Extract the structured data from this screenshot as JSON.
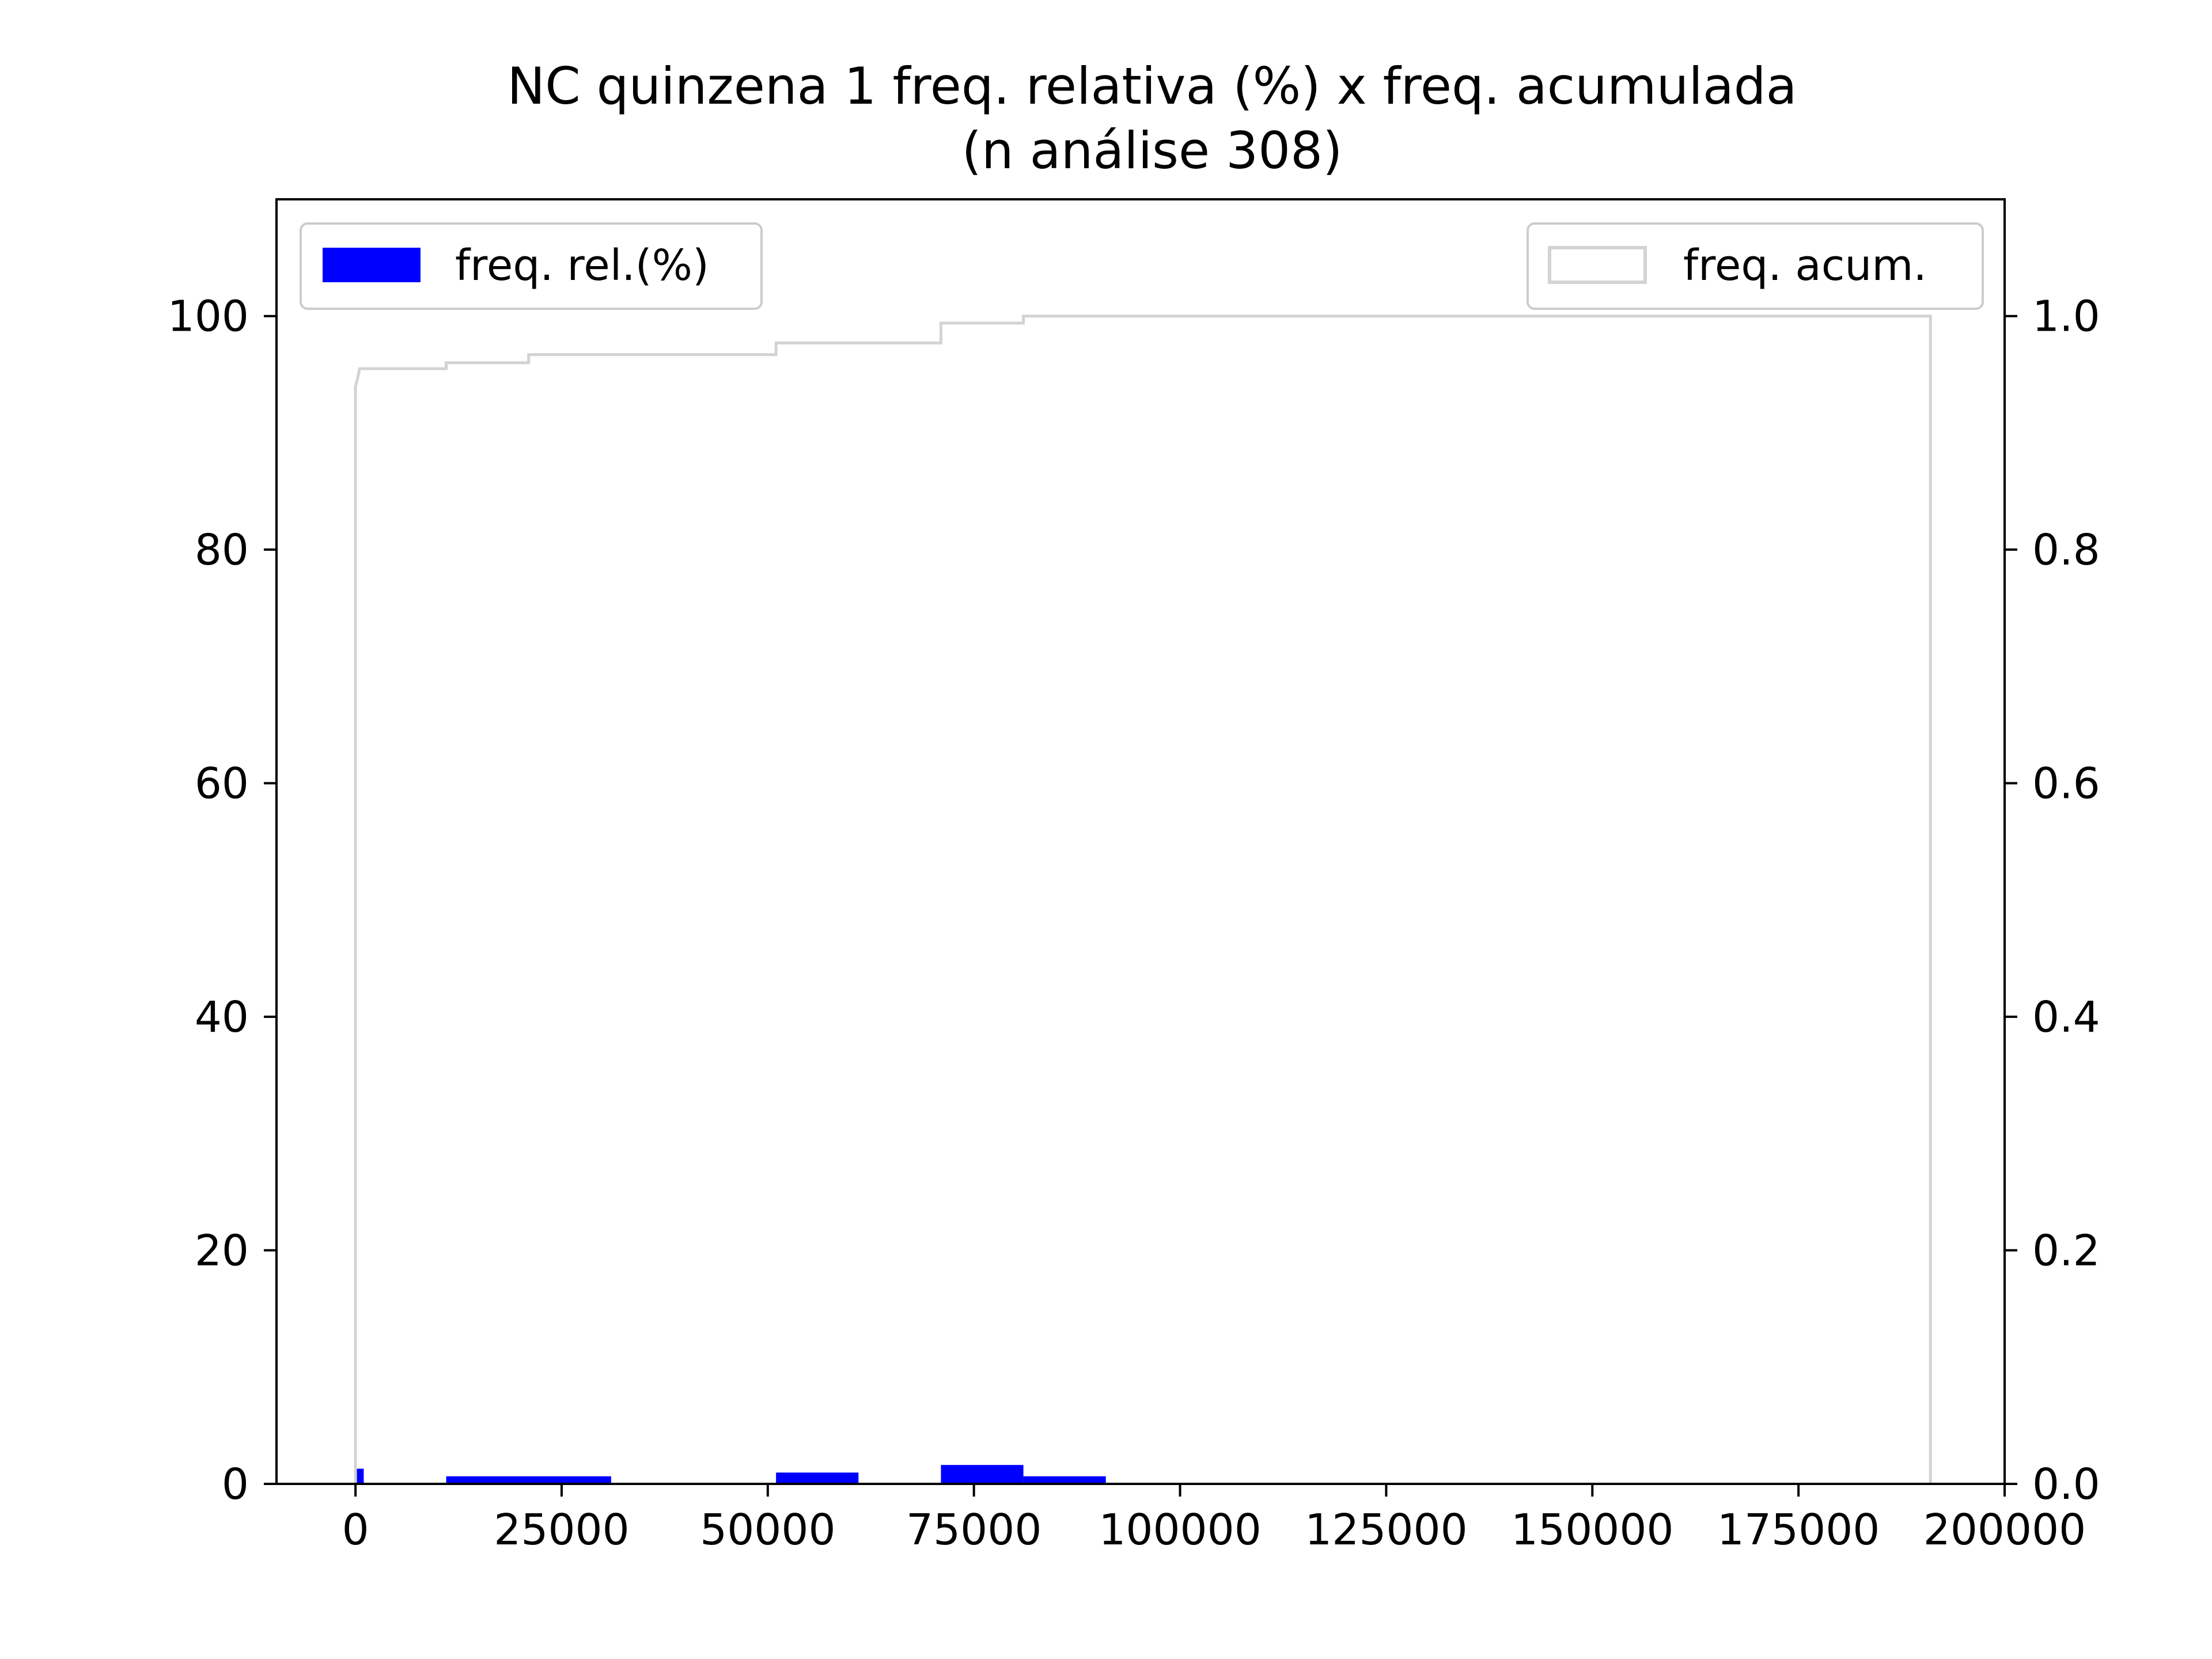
{
  "chart_data": {
    "type": "bar",
    "title": "NC quinzena 1 freq. relativa (%) x freq. acumulada",
    "subtitle": "(n análise 308)",
    "xlabel": "",
    "ylabel": "",
    "y2label": "",
    "xlim": [
      -9580,
      200000
    ],
    "ylim": [
      0,
      110
    ],
    "y2lim": [
      0,
      1.1
    ],
    "x_ticks": [
      0,
      25000,
      50000,
      75000,
      100000,
      125000,
      150000,
      175000,
      200000
    ],
    "y_ticks": [
      0,
      20,
      40,
      60,
      80,
      100
    ],
    "y2_ticks": [
      0.0,
      0.2,
      0.4,
      0.6,
      0.8,
      1.0
    ],
    "x_tick_labels": [
      "0",
      "25000",
      "50000",
      "75000",
      "100000",
      "125000",
      "150000",
      "175000",
      "200000"
    ],
    "y_tick_labels": [
      "0",
      "20",
      "40",
      "60",
      "80",
      "100"
    ],
    "y2_tick_labels": [
      "0.0",
      "0.2",
      "0.4",
      "0.6",
      "0.8",
      "1.0"
    ],
    "grid": false,
    "series": [
      {
        "name": "freq. rel.(%)",
        "kind": "bar",
        "axis": "left",
        "color": "#0000ff",
        "bins": [
          {
            "x0": 0,
            "x1": 1000,
            "value": 1.3
          },
          {
            "x0": 11000,
            "x1": 31000,
            "value": 0.65
          },
          {
            "x0": 51000,
            "x1": 61000,
            "value": 0.97
          },
          {
            "x0": 71000,
            "x1": 81000,
            "value": 1.62
          },
          {
            "x0": 81000,
            "x1": 91000,
            "value": 0.65
          }
        ]
      },
      {
        "name": "freq. acum.",
        "kind": "step",
        "axis": "right",
        "color": "#d3d3d3",
        "points": [
          [
            0,
            0.0
          ],
          [
            0,
            0.94
          ],
          [
            200,
            0.945
          ],
          [
            500,
            0.955
          ],
          [
            11000,
            0.955
          ],
          [
            11000,
            0.96
          ],
          [
            21000,
            0.96
          ],
          [
            21000,
            0.967
          ],
          [
            51000,
            0.967
          ],
          [
            51000,
            0.977
          ],
          [
            71000,
            0.977
          ],
          [
            71000,
            0.994
          ],
          [
            81000,
            0.994
          ],
          [
            81000,
            1.0
          ],
          [
            191000,
            1.0
          ],
          [
            191000,
            0.0
          ]
        ]
      }
    ],
    "legend_left": {
      "placement": "upper-left",
      "label": "freq. rel.(%)"
    },
    "legend_right": {
      "placement": "upper-right",
      "label": "freq. acum."
    }
  }
}
